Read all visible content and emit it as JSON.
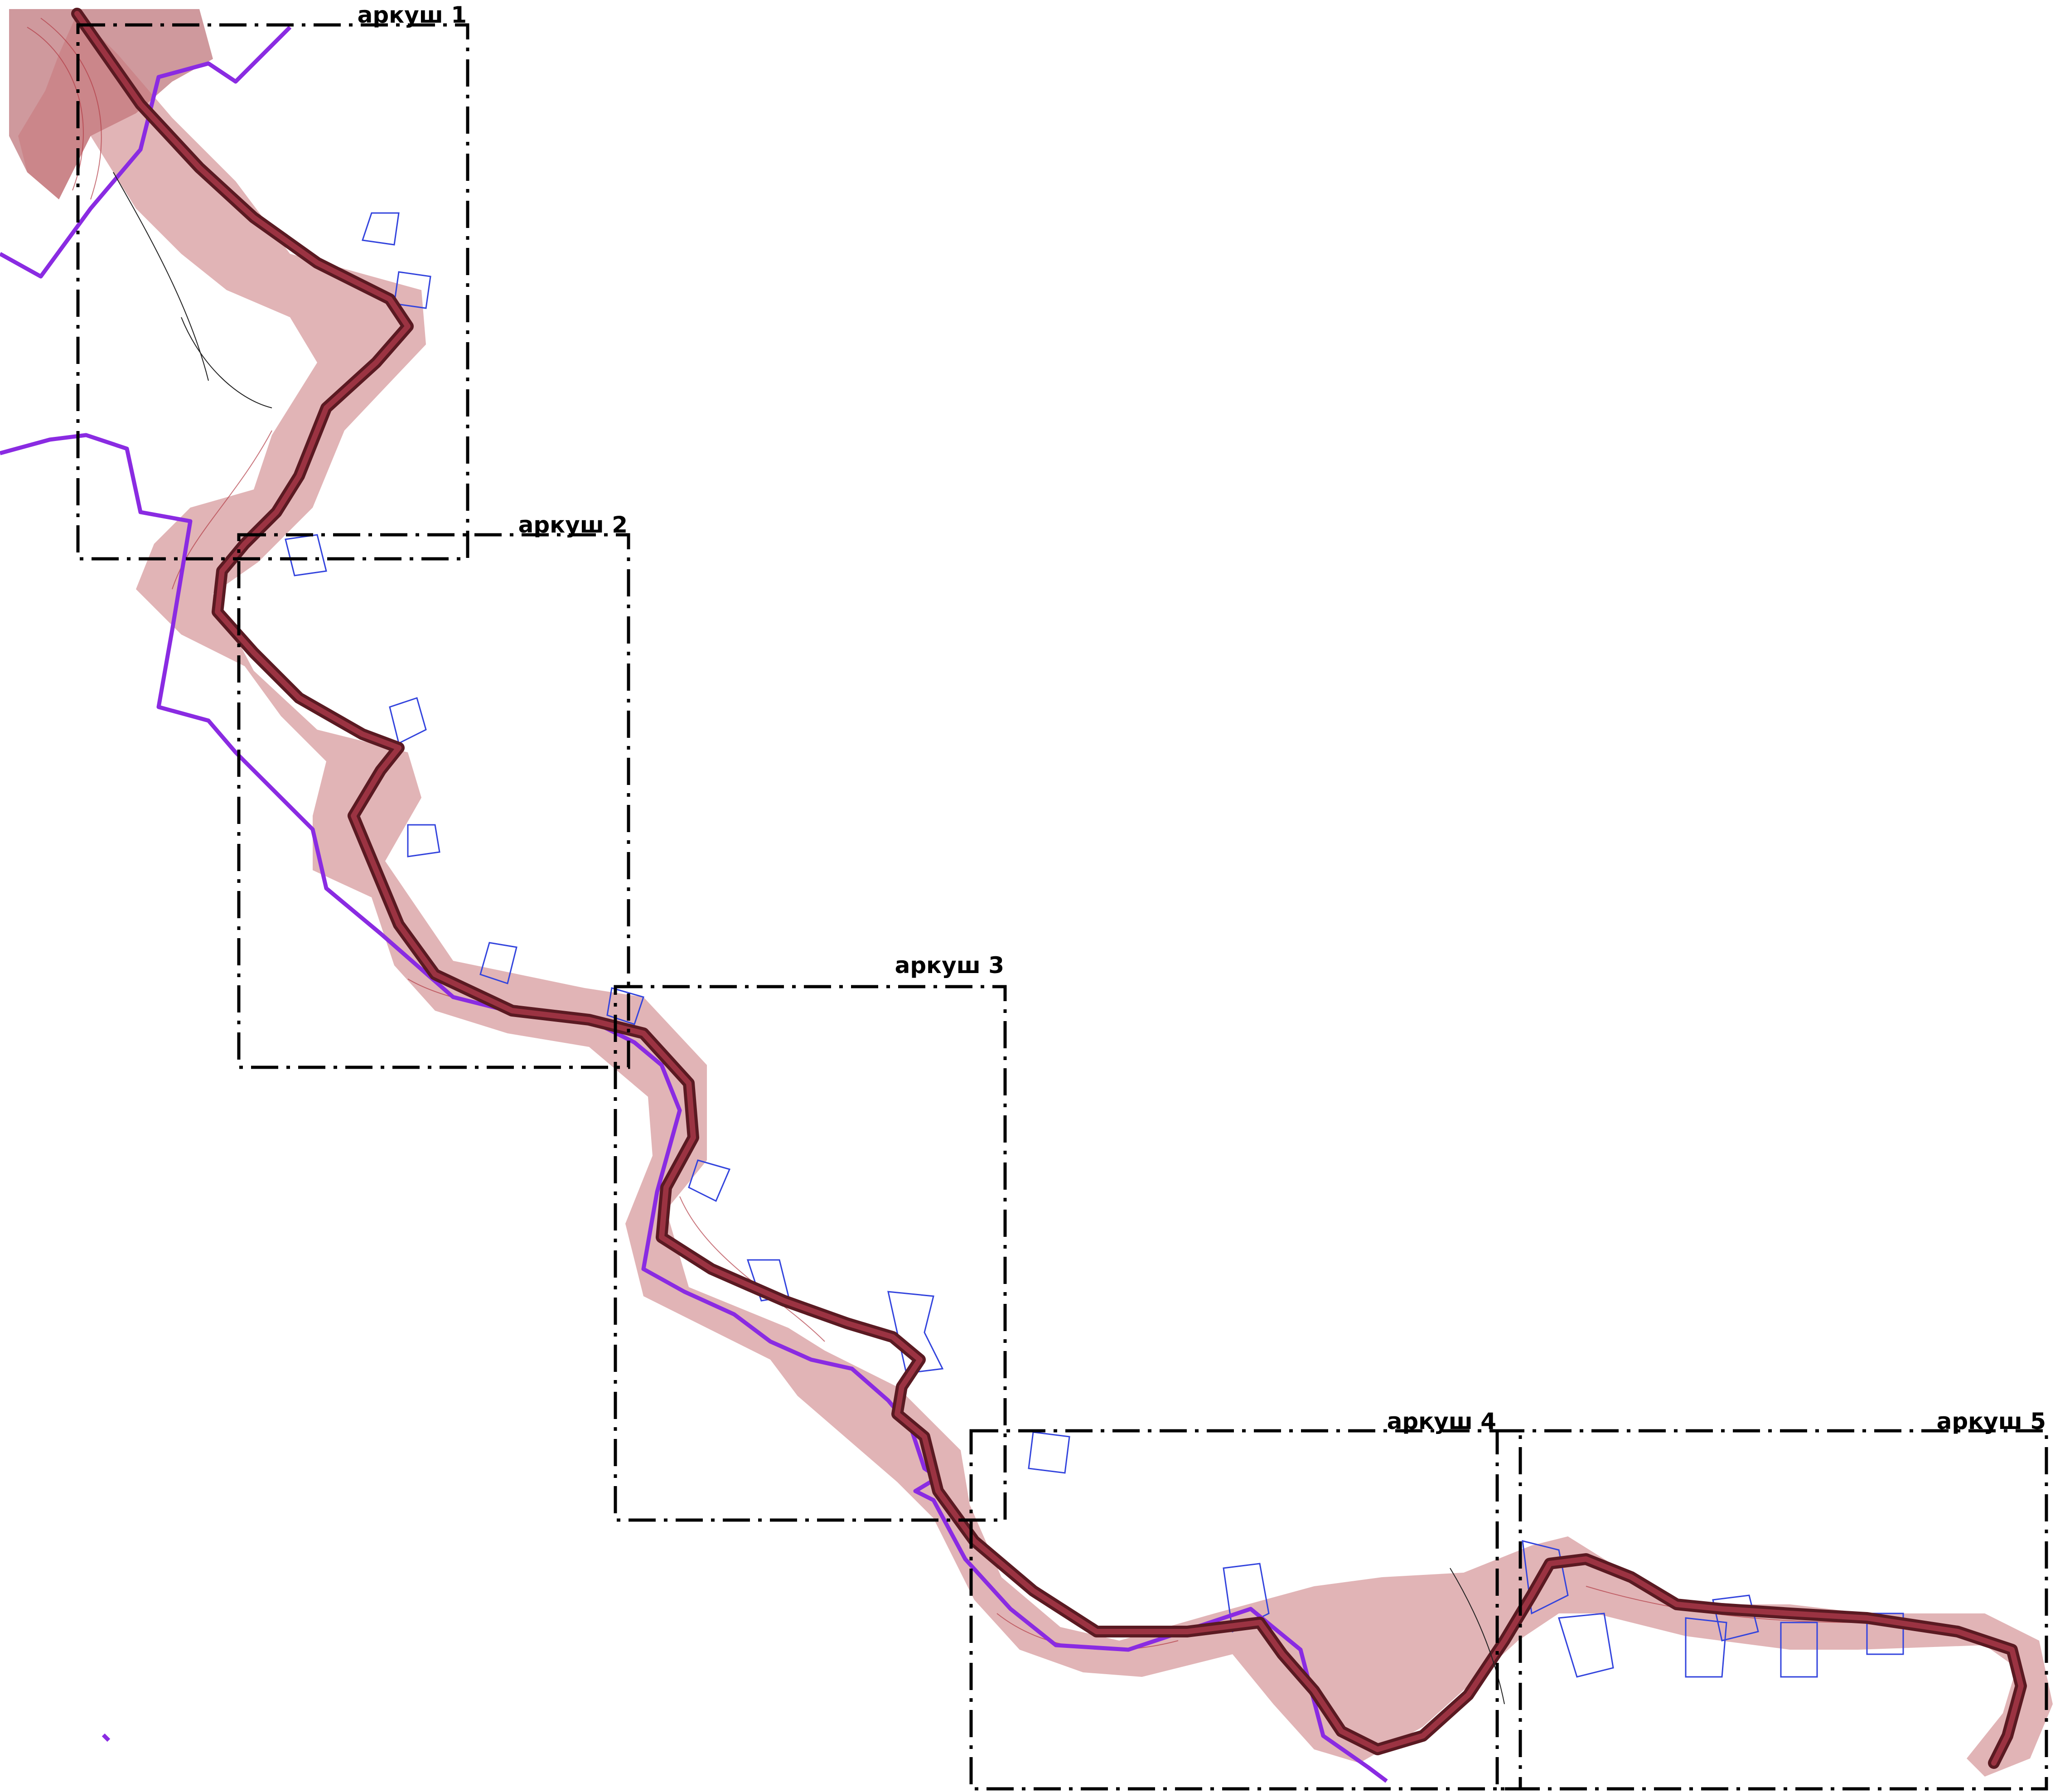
{
  "sheets": [
    {
      "label": "аркуш 1"
    },
    {
      "label": "аркуш 2"
    },
    {
      "label": "аркуш 3"
    },
    {
      "label": "аркуш 4"
    },
    {
      "label": "аркуш 5"
    }
  ],
  "colors": {
    "terrain": "#c9777a",
    "road": "#9b3342",
    "boundary": "#8a2be2",
    "parcels": "#3344dd",
    "frames": "#000000"
  }
}
